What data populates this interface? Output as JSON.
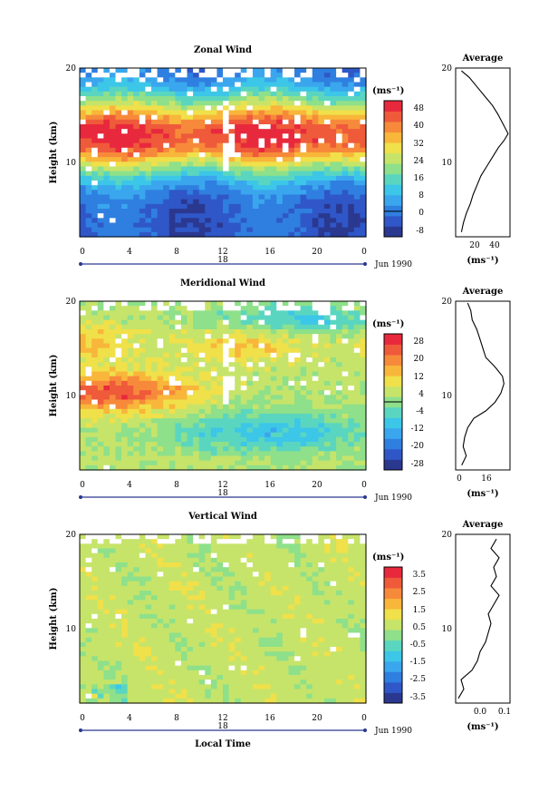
{
  "colors": {
    "scale": [
      "#2b3890",
      "#2f57c8",
      "#2f7fe0",
      "#3aa6ee",
      "#3cc6e8",
      "#5ad6c0",
      "#8ee08a",
      "#c6e46a",
      "#f0e04a",
      "#f8b63a",
      "#f78a3a",
      "#ef5a3a",
      "#e8283c"
    ],
    "missing": "#ffffff",
    "timeline": "#2b3890"
  },
  "chart_data": [
    {
      "type": "heatmap",
      "title": "Zonal Wind",
      "ylabel": "Height (km)",
      "xlabel": "",
      "x_ticks": [
        "0",
        "4",
        "8",
        "12",
        "16",
        "20",
        "0"
      ],
      "x_range": [
        0,
        24
      ],
      "y_ticks": [
        "20",
        "10"
      ],
      "y_range": [
        2,
        20
      ],
      "date_label": "18",
      "date_suffix": "Jun 1990",
      "colorbar": {
        "unit": "(ms⁻¹)",
        "ticks": [
          "48",
          "40",
          "32",
          "24",
          "16",
          "8",
          "0",
          "-8"
        ],
        "range": [
          -12,
          52
        ],
        "contour_at": 0
      },
      "profile_panel": {
        "title": "Average",
        "y_ticks": [
          "20",
          "10"
        ],
        "x_ticks": [
          "20",
          "40"
        ],
        "x_range": [
          0,
          56
        ],
        "unit": "(ms⁻¹)",
        "points": [
          [
            6,
            2.5
          ],
          [
            8,
            3.5
          ],
          [
            11,
            4.5
          ],
          [
            15,
            5.5
          ],
          [
            18,
            6.5
          ],
          [
            22,
            7.5
          ],
          [
            26,
            8.5
          ],
          [
            32,
            9.5
          ],
          [
            38,
            10.5
          ],
          [
            44,
            11.5
          ],
          [
            50,
            12.3
          ],
          [
            54,
            13.0
          ],
          [
            49,
            14.0
          ],
          [
            44,
            15.0
          ],
          [
            38,
            16.0
          ],
          [
            30,
            17.0
          ],
          [
            22,
            18.0
          ],
          [
            14,
            19.0
          ],
          [
            6,
            19.7
          ]
        ]
      }
    },
    {
      "type": "heatmap",
      "title": "Meridional Wind",
      "ylabel": "Height (km)",
      "xlabel": "",
      "x_ticks": [
        "0",
        "4",
        "8",
        "12",
        "16",
        "20",
        "0"
      ],
      "x_range": [
        0,
        24
      ],
      "y_ticks": [
        "20",
        "10"
      ],
      "y_range": [
        2,
        20
      ],
      "date_label": "18",
      "date_suffix": "Jun 1990",
      "colorbar": {
        "unit": "(ms⁻¹)",
        "ticks": [
          "28",
          "20",
          "12",
          "4",
          "-4",
          "-12",
          "-20",
          "-28"
        ],
        "range": [
          -32,
          32
        ],
        "contour_at": 0
      },
      "profile_panel": {
        "title": "Average",
        "y_ticks": [
          "20",
          "10"
        ],
        "x_ticks": [
          "0",
          "16"
        ],
        "x_range": [
          -6,
          30
        ],
        "unit": "(ms⁻¹)",
        "points": [
          [
            -2,
            2.5
          ],
          [
            1,
            3.5
          ],
          [
            -1,
            4.5
          ],
          [
            0,
            5.5
          ],
          [
            2,
            6.5
          ],
          [
            6,
            7.5
          ],
          [
            14,
            8.3
          ],
          [
            20,
            9.2
          ],
          [
            24,
            10.2
          ],
          [
            26,
            11.2
          ],
          [
            25,
            12.0
          ],
          [
            20,
            13.0
          ],
          [
            14,
            14.0
          ],
          [
            12,
            15.0
          ],
          [
            10,
            16.0
          ],
          [
            8,
            17.0
          ],
          [
            5,
            18.0
          ],
          [
            4,
            19.0
          ],
          [
            2,
            19.8
          ]
        ]
      }
    },
    {
      "type": "heatmap",
      "title": "Vertical Wind",
      "ylabel": "Height (km)",
      "xlabel": "Local Time",
      "x_ticks": [
        "0",
        "4",
        "8",
        "12",
        "16",
        "20",
        "0"
      ],
      "x_range": [
        0,
        24
      ],
      "y_ticks": [
        "20",
        "10"
      ],
      "y_range": [
        2,
        20
      ],
      "date_label": "18",
      "date_suffix": "Jun 1990",
      "colorbar": {
        "unit": "(ms⁻¹)",
        "ticks": [
          "3.5",
          "2.5",
          "1.5",
          "0.5",
          "-0.5",
          "-1.5",
          "-2.5",
          "-3.5"
        ],
        "range": [
          -4,
          4
        ],
        "contour_at": null
      },
      "profile_panel": {
        "title": "Average",
        "y_ticks": [
          "20",
          "10"
        ],
        "x_ticks": [
          "0.0",
          "0.1"
        ],
        "x_range": [
          -0.08,
          0.12
        ],
        "unit": "(ms⁻¹)",
        "points": [
          [
            -0.07,
            2.5
          ],
          [
            -0.05,
            3.5
          ],
          [
            -0.06,
            4.5
          ],
          [
            -0.02,
            5.5
          ],
          [
            0.0,
            6.5
          ],
          [
            0.01,
            7.5
          ],
          [
            0.03,
            8.5
          ],
          [
            0.04,
            9.5
          ],
          [
            0.05,
            10.5
          ],
          [
            0.04,
            11.5
          ],
          [
            0.06,
            12.5
          ],
          [
            0.08,
            13.5
          ],
          [
            0.05,
            14.5
          ],
          [
            0.07,
            15.5
          ],
          [
            0.06,
            16.5
          ],
          [
            0.08,
            17.5
          ],
          [
            0.05,
            18.5
          ],
          [
            0.07,
            19.5
          ]
        ]
      }
    }
  ]
}
